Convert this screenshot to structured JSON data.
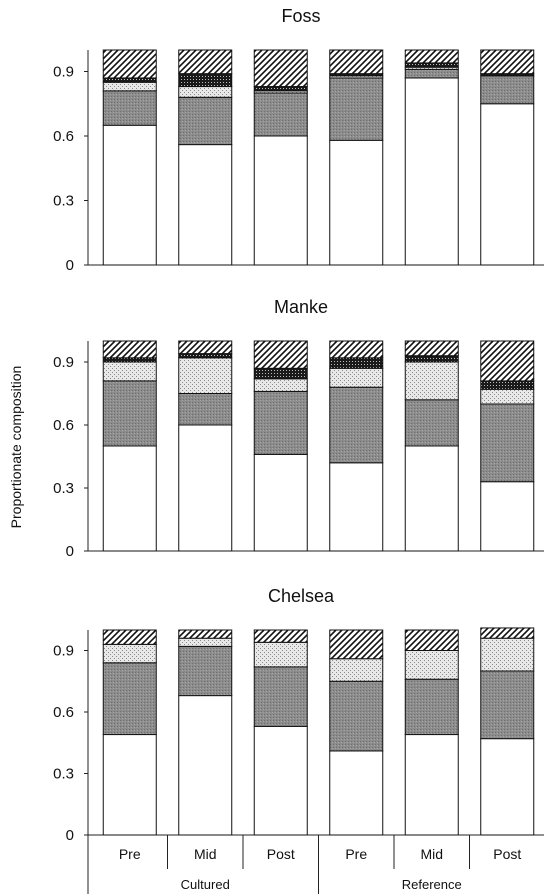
{
  "y_axis_label": "Proportionate composition",
  "chart_data": [
    {
      "type": "bar",
      "stacked": true,
      "title": "Foss",
      "categories": [
        "Pre",
        "Mid",
        "Post",
        "Pre",
        "Mid",
        "Post"
      ],
      "groups": [
        {
          "label": "Cultured",
          "span": 3
        },
        {
          "label": "Reference",
          "span": 3
        }
      ],
      "ylim": [
        0,
        1
      ],
      "yticks": [
        "0",
        "0.3",
        "0.6",
        "0.9"
      ],
      "series": [
        {
          "pattern": "white",
          "values": [
            0.65,
            0.56,
            0.6,
            0.58,
            0.87,
            0.75
          ]
        },
        {
          "pattern": "gray",
          "values": [
            0.16,
            0.22,
            0.2,
            0.29,
            0.04,
            0.13
          ]
        },
        {
          "pattern": "light-dots",
          "values": [
            0.04,
            0.05,
            0.01,
            0.01,
            0.01,
            0.0
          ]
        },
        {
          "pattern": "dark-dots",
          "values": [
            0.02,
            0.06,
            0.02,
            0.01,
            0.02,
            0.01
          ]
        },
        {
          "pattern": "hatch",
          "values": [
            0.13,
            0.11,
            0.17,
            0.11,
            0.06,
            0.11
          ]
        }
      ]
    },
    {
      "type": "bar",
      "stacked": true,
      "title": "Manke",
      "categories": [
        "Pre",
        "Mid",
        "Post",
        "Pre",
        "Mid",
        "Post"
      ],
      "groups": [
        {
          "label": "Cultured",
          "span": 3
        },
        {
          "label": "Reference",
          "span": 3
        }
      ],
      "ylim": [
        0,
        1
      ],
      "yticks": [
        "0",
        "0.3",
        "0.6",
        "0.9"
      ],
      "series": [
        {
          "pattern": "white",
          "values": [
            0.5,
            0.6,
            0.46,
            0.42,
            0.5,
            0.33
          ]
        },
        {
          "pattern": "gray",
          "values": [
            0.31,
            0.15,
            0.3,
            0.36,
            0.22,
            0.37
          ]
        },
        {
          "pattern": "light-dots",
          "values": [
            0.09,
            0.17,
            0.06,
            0.09,
            0.18,
            0.07
          ]
        },
        {
          "pattern": "dark-dots",
          "values": [
            0.02,
            0.02,
            0.05,
            0.05,
            0.03,
            0.04
          ]
        },
        {
          "pattern": "hatch",
          "values": [
            0.08,
            0.06,
            0.13,
            0.08,
            0.07,
            0.19
          ]
        }
      ]
    },
    {
      "type": "bar",
      "stacked": true,
      "title": "Chelsea",
      "categories": [
        "Pre",
        "Mid",
        "Post",
        "Pre",
        "Mid",
        "Post"
      ],
      "groups": [
        {
          "label": "Cultured",
          "span": 3
        },
        {
          "label": "Reference",
          "span": 3
        }
      ],
      "ylim": [
        0,
        1
      ],
      "yticks": [
        "0",
        "0.3",
        "0.6",
        "0.9"
      ],
      "series": [
        {
          "pattern": "white",
          "values": [
            0.49,
            0.68,
            0.53,
            0.41,
            0.49,
            0.47
          ]
        },
        {
          "pattern": "gray",
          "values": [
            0.35,
            0.24,
            0.29,
            0.34,
            0.27,
            0.33
          ]
        },
        {
          "pattern": "light-dots",
          "values": [
            0.09,
            0.04,
            0.12,
            0.11,
            0.14,
            0.16
          ]
        },
        {
          "pattern": "dark-dots",
          "values": [
            0.0,
            0.0,
            0.0,
            0.0,
            0.0,
            0.0
          ]
        },
        {
          "pattern": "hatch",
          "values": [
            0.07,
            0.04,
            0.06,
            0.14,
            0.1,
            0.05
          ]
        }
      ]
    }
  ]
}
